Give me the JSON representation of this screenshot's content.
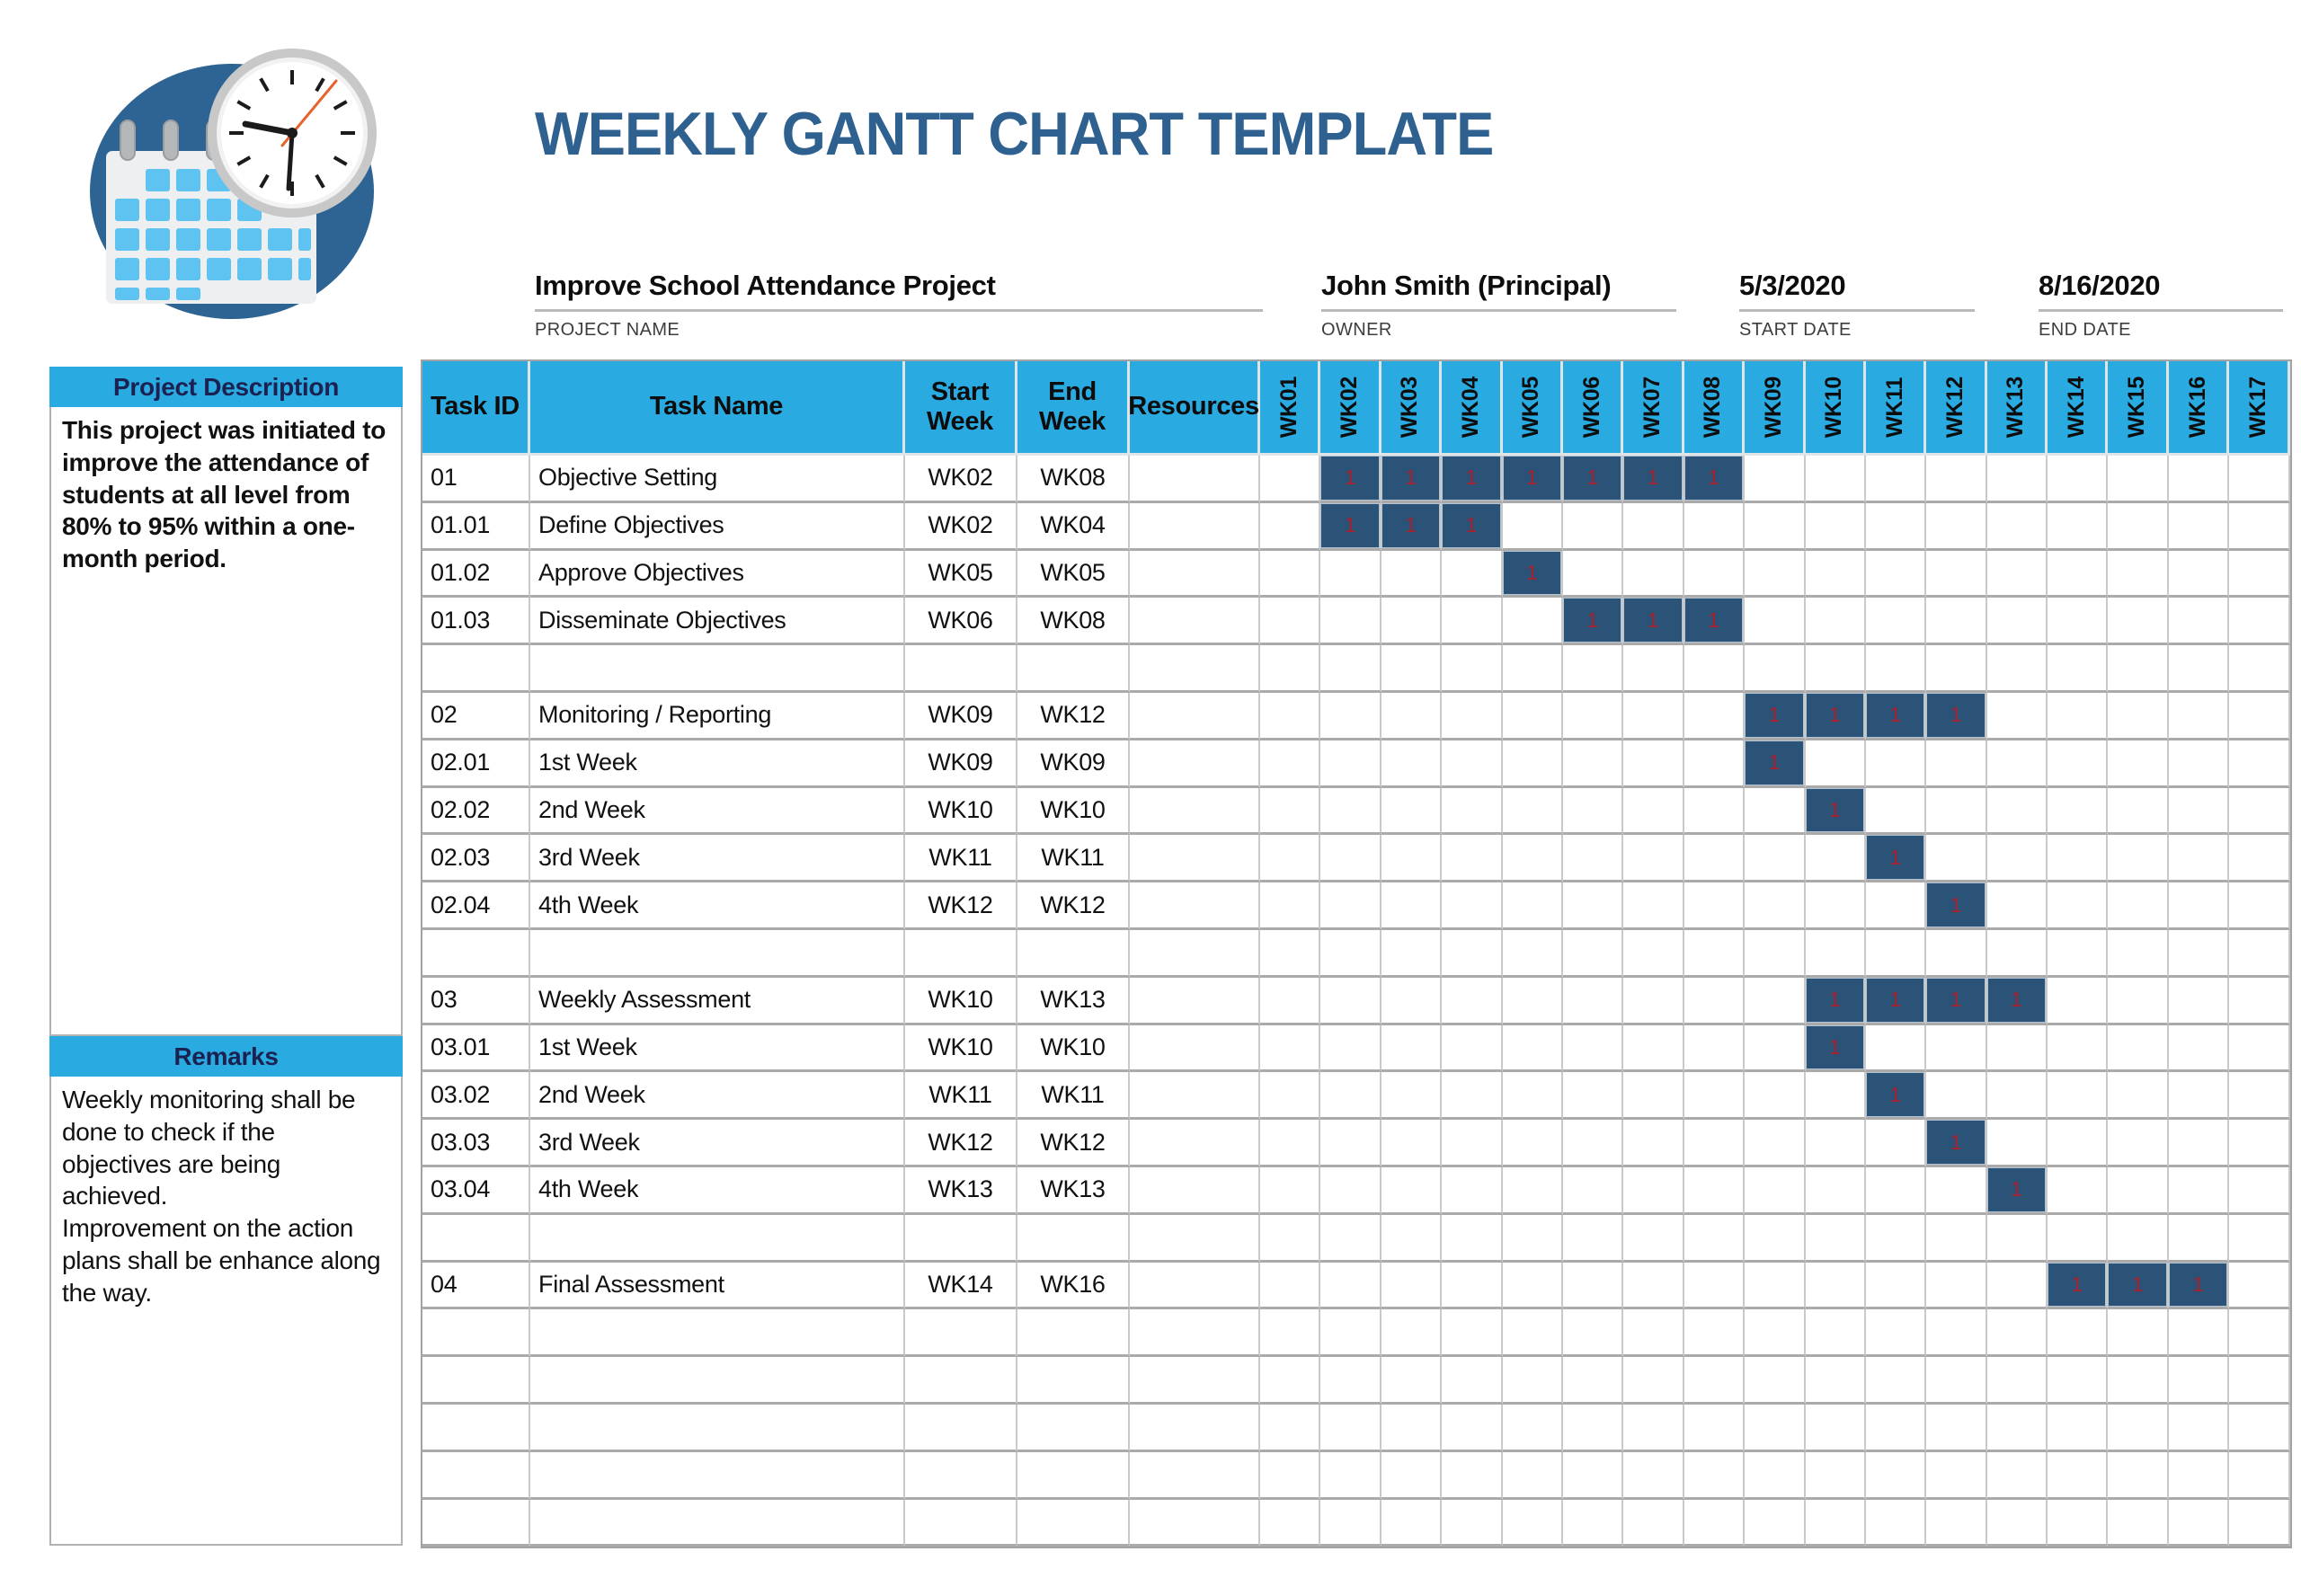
{
  "page_title": "WEEKLY GANTT CHART TEMPLATE",
  "project_info": {
    "fields": [
      {
        "value": "Improve School Attendance Project",
        "label": "PROJECT NAME"
      },
      {
        "value": "John Smith (Principal)",
        "label": "OWNER"
      },
      {
        "value": "5/3/2020",
        "label": "START DATE"
      },
      {
        "value": "8/16/2020",
        "label": "END DATE"
      }
    ]
  },
  "sidebar": {
    "description": {
      "header": "Project Description",
      "body": "This project was initiated to improve the attendance of students at all level from 80% to 95% within a one-month period."
    },
    "remarks": {
      "header": "Remarks",
      "body": "Weekly monitoring shall be done to check if the objectives are being achieved.\nImprovement on the action plans shall be enhance along the way."
    }
  },
  "gantt": {
    "header": {
      "task_id": "Task ID",
      "task_name": "Task Name",
      "start_line1": "Start",
      "start_line2": "Week",
      "end_line1": "End",
      "end_line2": "Week",
      "resources": "Resources"
    },
    "weeks": [
      "WK01",
      "WK02",
      "WK03",
      "WK04",
      "WK05",
      "WK06",
      "WK07",
      "WK08",
      "WK09",
      "WK10",
      "WK11",
      "WK12",
      "WK13",
      "WK14",
      "WK15",
      "WK16",
      "WK17"
    ],
    "row_layout": [
      "01",
      "01.01",
      "01.02",
      "01.03",
      "",
      "02",
      "02.01",
      "02.02",
      "02.03",
      "02.04",
      "",
      "03",
      "03.01",
      "03.02",
      "03.03",
      "03.04",
      "",
      "04",
      "",
      "",
      "",
      "",
      ""
    ]
  },
  "chart_data": {
    "type": "gantt",
    "title": "WEEKLY GANTT CHART TEMPLATE",
    "project_name": "Improve School Attendance Project",
    "owner": "John Smith (Principal)",
    "start_date": "5/3/2020",
    "end_date": "8/16/2020",
    "time_axis": [
      "WK01",
      "WK02",
      "WK03",
      "WK04",
      "WK05",
      "WK06",
      "WK07",
      "WK08",
      "WK09",
      "WK10",
      "WK11",
      "WK12",
      "WK13",
      "WK14",
      "WK15",
      "WK16",
      "WK17"
    ],
    "cell_value": "1",
    "tasks": [
      {
        "id": "01",
        "name": "Objective Setting",
        "start": "WK02",
        "end": "WK08"
      },
      {
        "id": "01.01",
        "name": "Define Objectives",
        "start": "WK02",
        "end": "WK04"
      },
      {
        "id": "01.02",
        "name": "Approve Objectives",
        "start": "WK05",
        "end": "WK05"
      },
      {
        "id": "01.03",
        "name": "Disseminate Objectives",
        "start": "WK06",
        "end": "WK08"
      },
      {
        "id": "02",
        "name": "Monitoring / Reporting",
        "start": "WK09",
        "end": "WK12"
      },
      {
        "id": "02.01",
        "name": "1st Week",
        "start": "WK09",
        "end": "WK09"
      },
      {
        "id": "02.02",
        "name": "2nd Week",
        "start": "WK10",
        "end": "WK10"
      },
      {
        "id": "02.03",
        "name": "3rd Week",
        "start": "WK11",
        "end": "WK11"
      },
      {
        "id": "02.04",
        "name": "4th Week",
        "start": "WK12",
        "end": "WK12"
      },
      {
        "id": "03",
        "name": "Weekly Assessment",
        "start": "WK10",
        "end": "WK13"
      },
      {
        "id": "03.01",
        "name": "1st Week",
        "start": "WK10",
        "end": "WK10"
      },
      {
        "id": "03.02",
        "name": "2nd Week",
        "start": "WK11",
        "end": "WK11"
      },
      {
        "id": "03.03",
        "name": "3rd Week",
        "start": "WK12",
        "end": "WK12"
      },
      {
        "id": "03.04",
        "name": "4th Week",
        "start": "WK13",
        "end": "WK13"
      },
      {
        "id": "04",
        "name": "Final Assessment",
        "start": "WK14",
        "end": "WK16"
      }
    ]
  },
  "colors": {
    "accent_cyan": "#29abe2",
    "bar_navy": "#2b5277",
    "bar_value_red": "#a8212f",
    "title_blue": "#2e6090",
    "panel_header_text": "#1b2150"
  }
}
